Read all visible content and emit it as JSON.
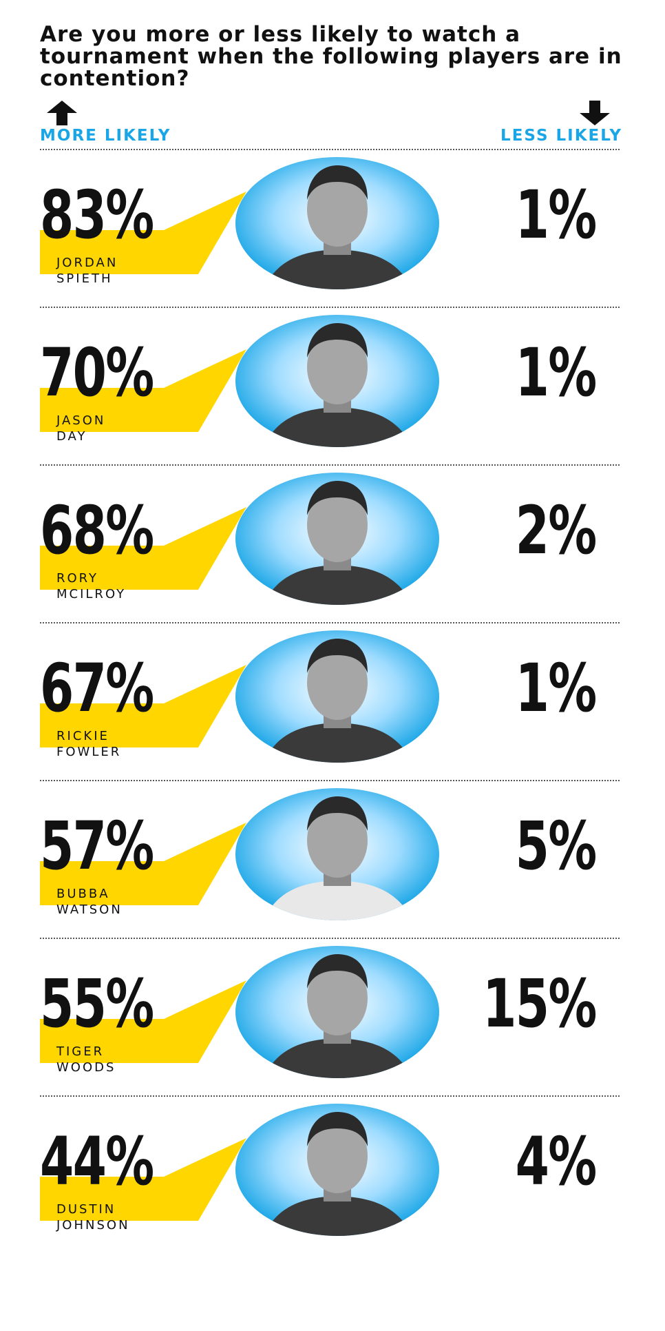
{
  "question": "Are you more or less likely to watch a tournament when the following players are in contention?",
  "legend": {
    "more": "MORE LIKELY",
    "less": "LESS LIKELY"
  },
  "colors": {
    "accent_blue": "#1aa6e6",
    "callout_yellow": "#ffd600",
    "text": "#111111"
  },
  "icons": {
    "more": "arrow-up-icon",
    "less": "arrow-down-icon"
  },
  "chart_data": {
    "type": "table",
    "title": "Are you more or less likely to watch a tournament when the following players are in contention?",
    "columns": [
      "MORE LIKELY",
      "LESS LIKELY"
    ],
    "categories": [
      "JORDAN SPIETH",
      "JASON DAY",
      "RORY MCILROY",
      "RICKIE FOWLER",
      "BUBBA WATSON",
      "TIGER WOODS",
      "DUSTIN JOHNSON"
    ],
    "rows": [
      {
        "name_lines": [
          "JORDAN",
          "SPIETH"
        ],
        "more": "83%",
        "less": "1%"
      },
      {
        "name_lines": [
          "JASON",
          "DAY"
        ],
        "more": "70%",
        "less": "1%"
      },
      {
        "name_lines": [
          "RORY",
          "MCILROY"
        ],
        "more": "68%",
        "less": "2%"
      },
      {
        "name_lines": [
          "RICKIE",
          "FOWLER"
        ],
        "more": "67%",
        "less": "1%"
      },
      {
        "name_lines": [
          "BUBBA",
          "WATSON"
        ],
        "more": "57%",
        "less": "5%"
      },
      {
        "name_lines": [
          "TIGER",
          "WOODS"
        ],
        "more": "55%",
        "less": "15%"
      },
      {
        "name_lines": [
          "DUSTIN",
          "JOHNSON"
        ],
        "more": "44%",
        "less": "4%"
      }
    ],
    "series": [
      {
        "name": "MORE LIKELY",
        "values": [
          83,
          70,
          68,
          67,
          57,
          55,
          44
        ]
      },
      {
        "name": "LESS LIKELY",
        "values": [
          1,
          1,
          2,
          1,
          5,
          15,
          4
        ]
      }
    ]
  }
}
